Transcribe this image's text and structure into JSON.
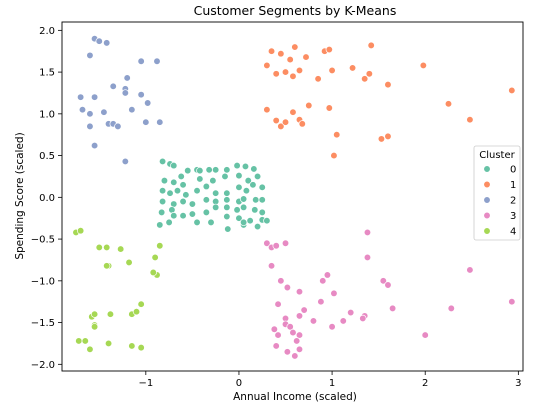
{
  "chart_data": {
    "type": "scatter",
    "title": "Customer Segments by K-Means",
    "xlabel": "Annual Income (scaled)",
    "ylabel": "Spending Score (scaled)",
    "xlim": [
      -1.9,
      3.05
    ],
    "ylim": [
      -2.08,
      2.1
    ],
    "x_ticks": [
      -1,
      0,
      1,
      2,
      3
    ],
    "y_ticks": [
      -2.0,
      -1.5,
      -1.0,
      -0.5,
      0.0,
      0.5,
      1.0,
      1.5,
      2.0
    ],
    "x_tick_labels": [
      "−1",
      "0",
      "1",
      "2",
      "3"
    ],
    "y_tick_labels": [
      "−2.0",
      "−1.5",
      "−1.0",
      "−0.5",
      "0.0",
      "0.5",
      "1.0",
      "1.5",
      "2.0"
    ],
    "grid": false,
    "legend": {
      "title": "Cluster",
      "placement": "center-right"
    },
    "series": [
      {
        "name": "0",
        "color": "#66c2a5",
        "points": [
          [
            -0.82,
            0.43
          ],
          [
            -0.74,
            0.4
          ],
          [
            -0.7,
            0.38
          ],
          [
            -0.62,
            0.25
          ],
          [
            -0.55,
            0.32
          ],
          [
            -0.45,
            0.33
          ],
          [
            -0.42,
            0.32
          ],
          [
            -0.32,
            0.33
          ],
          [
            -0.25,
            0.33
          ],
          [
            -0.13,
            0.33
          ],
          [
            -0.02,
            0.38
          ],
          [
            0.07,
            0.37
          ],
          [
            0.16,
            0.34
          ],
          [
            -0.8,
            0.2
          ],
          [
            -0.7,
            0.18
          ],
          [
            -0.6,
            0.15
          ],
          [
            -0.42,
            0.22
          ],
          [
            -0.28,
            0.2
          ],
          [
            -0.15,
            0.25
          ],
          [
            0.0,
            0.26
          ],
          [
            0.1,
            0.2
          ],
          [
            0.2,
            0.25
          ],
          [
            -0.82,
            0.08
          ],
          [
            -0.74,
            0.05
          ],
          [
            -0.66,
            0.08
          ],
          [
            -0.57,
            0.03
          ],
          [
            -0.45,
            0.08
          ],
          [
            -0.35,
            0.13
          ],
          [
            -0.25,
            0.05
          ],
          [
            -0.13,
            0.05
          ],
          [
            0.0,
            0.12
          ],
          [
            0.08,
            0.08
          ],
          [
            0.15,
            0.15
          ],
          [
            0.25,
            0.12
          ],
          [
            -0.82,
            -0.05
          ],
          [
            -0.7,
            -0.08
          ],
          [
            -0.6,
            -0.05
          ],
          [
            -0.5,
            -0.08
          ],
          [
            -0.35,
            -0.03
          ],
          [
            -0.25,
            -0.05
          ],
          [
            -0.13,
            -0.03
          ],
          [
            0.0,
            -0.05
          ],
          [
            0.05,
            -0.02
          ],
          [
            0.18,
            -0.03
          ],
          [
            0.25,
            -0.03
          ],
          [
            -0.83,
            -0.18
          ],
          [
            -0.72,
            -0.15
          ],
          [
            -0.6,
            -0.22
          ],
          [
            -0.5,
            -0.2
          ],
          [
            -0.35,
            -0.18
          ],
          [
            -0.25,
            -0.12
          ],
          [
            -0.13,
            -0.12
          ],
          [
            -0.02,
            -0.15
          ],
          [
            0.05,
            -0.12
          ],
          [
            0.17,
            -0.15
          ],
          [
            0.25,
            -0.18
          ],
          [
            -0.85,
            -0.33
          ],
          [
            -0.75,
            -0.3
          ],
          [
            -0.45,
            -0.3
          ],
          [
            -0.3,
            -0.3
          ],
          [
            -0.13,
            -0.23
          ],
          [
            0.0,
            -0.25
          ],
          [
            0.05,
            -0.33
          ],
          [
            0.12,
            -0.28
          ],
          [
            0.2,
            -0.35
          ],
          [
            0.25,
            -0.27
          ],
          [
            0.3,
            -0.28
          ],
          [
            -0.7,
            -0.22
          ],
          [
            -0.12,
            -0.38
          ],
          [
            0.05,
            -0.3
          ]
        ]
      },
      {
        "name": "1",
        "color": "#fc8d62",
        "points": [
          [
            0.35,
            1.75
          ],
          [
            0.45,
            1.72
          ],
          [
            0.6,
            1.8
          ],
          [
            0.72,
            1.68
          ],
          [
            0.55,
            1.65
          ],
          [
            0.92,
            1.75
          ],
          [
            0.97,
            1.77
          ],
          [
            1.42,
            1.82
          ],
          [
            0.3,
            1.58
          ],
          [
            0.4,
            1.48
          ],
          [
            0.5,
            1.5
          ],
          [
            0.58,
            1.45
          ],
          [
            0.65,
            1.52
          ],
          [
            0.85,
            1.42
          ],
          [
            1.0,
            1.52
          ],
          [
            1.22,
            1.55
          ],
          [
            1.35,
            1.42
          ],
          [
            1.4,
            1.48
          ],
          [
            1.6,
            1.35
          ],
          [
            1.98,
            1.58
          ],
          [
            2.25,
            1.12
          ],
          [
            2.48,
            0.93
          ],
          [
            2.93,
            1.28
          ],
          [
            0.3,
            1.05
          ],
          [
            0.4,
            0.92
          ],
          [
            0.45,
            0.85
          ],
          [
            0.5,
            0.9
          ],
          [
            0.58,
            1.02
          ],
          [
            0.65,
            0.93
          ],
          [
            0.68,
            0.88
          ],
          [
            0.75,
            1.1
          ],
          [
            0.97,
            1.07
          ],
          [
            1.05,
            0.75
          ],
          [
            1.53,
            0.7
          ],
          [
            1.6,
            0.73
          ],
          [
            1.02,
            0.5
          ]
        ]
      },
      {
        "name": "2",
        "color": "#8da0cb",
        "points": [
          [
            -1.55,
            1.9
          ],
          [
            -1.6,
            1.7
          ],
          [
            -1.5,
            1.87
          ],
          [
            -1.42,
            1.85
          ],
          [
            -1.7,
            1.2
          ],
          [
            -1.68,
            1.05
          ],
          [
            -1.6,
            1.0
          ],
          [
            -1.55,
            1.2
          ],
          [
            -1.45,
            1.02
          ],
          [
            -1.35,
            1.33
          ],
          [
            -1.4,
            0.88
          ],
          [
            -1.35,
            0.88
          ],
          [
            -1.3,
            0.85
          ],
          [
            -1.22,
            1.3
          ],
          [
            -1.2,
            1.43
          ],
          [
            -1.22,
            1.25
          ],
          [
            -1.15,
            1.05
          ],
          [
            -1.05,
            1.23
          ],
          [
            -1.05,
            1.63
          ],
          [
            -0.98,
            1.13
          ],
          [
            -0.88,
            1.63
          ],
          [
            -0.85,
            0.9
          ],
          [
            -1.22,
            0.43
          ],
          [
            -1.55,
            0.62
          ],
          [
            -1.6,
            0.85
          ],
          [
            -1.0,
            0.9
          ]
        ]
      },
      {
        "name": "3",
        "color": "#e78ac3",
        "points": [
          [
            0.3,
            -0.55
          ],
          [
            0.35,
            -0.6
          ],
          [
            0.4,
            -0.58
          ],
          [
            0.5,
            -0.55
          ],
          [
            0.35,
            -0.82
          ],
          [
            0.45,
            -1.0
          ],
          [
            0.52,
            -1.08
          ],
          [
            0.42,
            -1.28
          ],
          [
            0.5,
            -1.45
          ],
          [
            0.65,
            -1.13
          ],
          [
            0.65,
            -1.42
          ],
          [
            0.7,
            -1.35
          ],
          [
            0.65,
            -1.65
          ],
          [
            0.38,
            -1.58
          ],
          [
            0.42,
            -1.65
          ],
          [
            0.5,
            -1.52
          ],
          [
            0.55,
            -1.55
          ],
          [
            0.58,
            -1.62
          ],
          [
            0.62,
            -1.72
          ],
          [
            0.4,
            -1.78
          ],
          [
            0.52,
            -1.85
          ],
          [
            0.65,
            -1.82
          ],
          [
            0.6,
            -1.9
          ],
          [
            0.8,
            -1.48
          ],
          [
            0.88,
            -1.25
          ],
          [
            0.9,
            -1.0
          ],
          [
            0.95,
            -0.93
          ],
          [
            1.0,
            -1.55
          ],
          [
            1.02,
            -1.15
          ],
          [
            1.12,
            -1.48
          ],
          [
            1.2,
            -1.38
          ],
          [
            1.35,
            -1.42
          ],
          [
            1.38,
            -0.42
          ],
          [
            1.55,
            -1.0
          ],
          [
            1.6,
            -1.05
          ],
          [
            1.65,
            -1.33
          ],
          [
            1.33,
            -1.45
          ],
          [
            2.0,
            -1.65
          ],
          [
            2.28,
            -1.33
          ],
          [
            2.48,
            -0.87
          ],
          [
            2.93,
            -1.25
          ],
          [
            1.38,
            -0.72
          ]
        ]
      },
      {
        "name": "4",
        "color": "#a6d854",
        "points": [
          [
            -1.75,
            -0.42
          ],
          [
            -1.7,
            -0.4
          ],
          [
            -1.5,
            -0.6
          ],
          [
            -1.42,
            -0.6
          ],
          [
            -1.4,
            -0.82
          ],
          [
            -1.27,
            -0.62
          ],
          [
            -1.18,
            -0.78
          ],
          [
            -0.85,
            -0.58
          ],
          [
            -0.9,
            -0.72
          ],
          [
            -0.88,
            -0.93
          ],
          [
            -1.05,
            -1.28
          ],
          [
            -1.15,
            -1.4
          ],
          [
            -1.58,
            -1.43
          ],
          [
            -1.55,
            -1.4
          ],
          [
            -1.55,
            -1.53
          ],
          [
            -1.55,
            -1.55
          ],
          [
            -1.38,
            -1.4
          ],
          [
            -1.1,
            -1.37
          ],
          [
            -1.72,
            -1.72
          ],
          [
            -1.65,
            -1.72
          ],
          [
            -1.6,
            -1.82
          ],
          [
            -1.4,
            -1.75
          ],
          [
            -1.15,
            -1.78
          ],
          [
            -1.05,
            -1.8
          ],
          [
            -0.92,
            -0.9
          ],
          [
            -1.42,
            -0.82
          ]
        ]
      }
    ]
  }
}
